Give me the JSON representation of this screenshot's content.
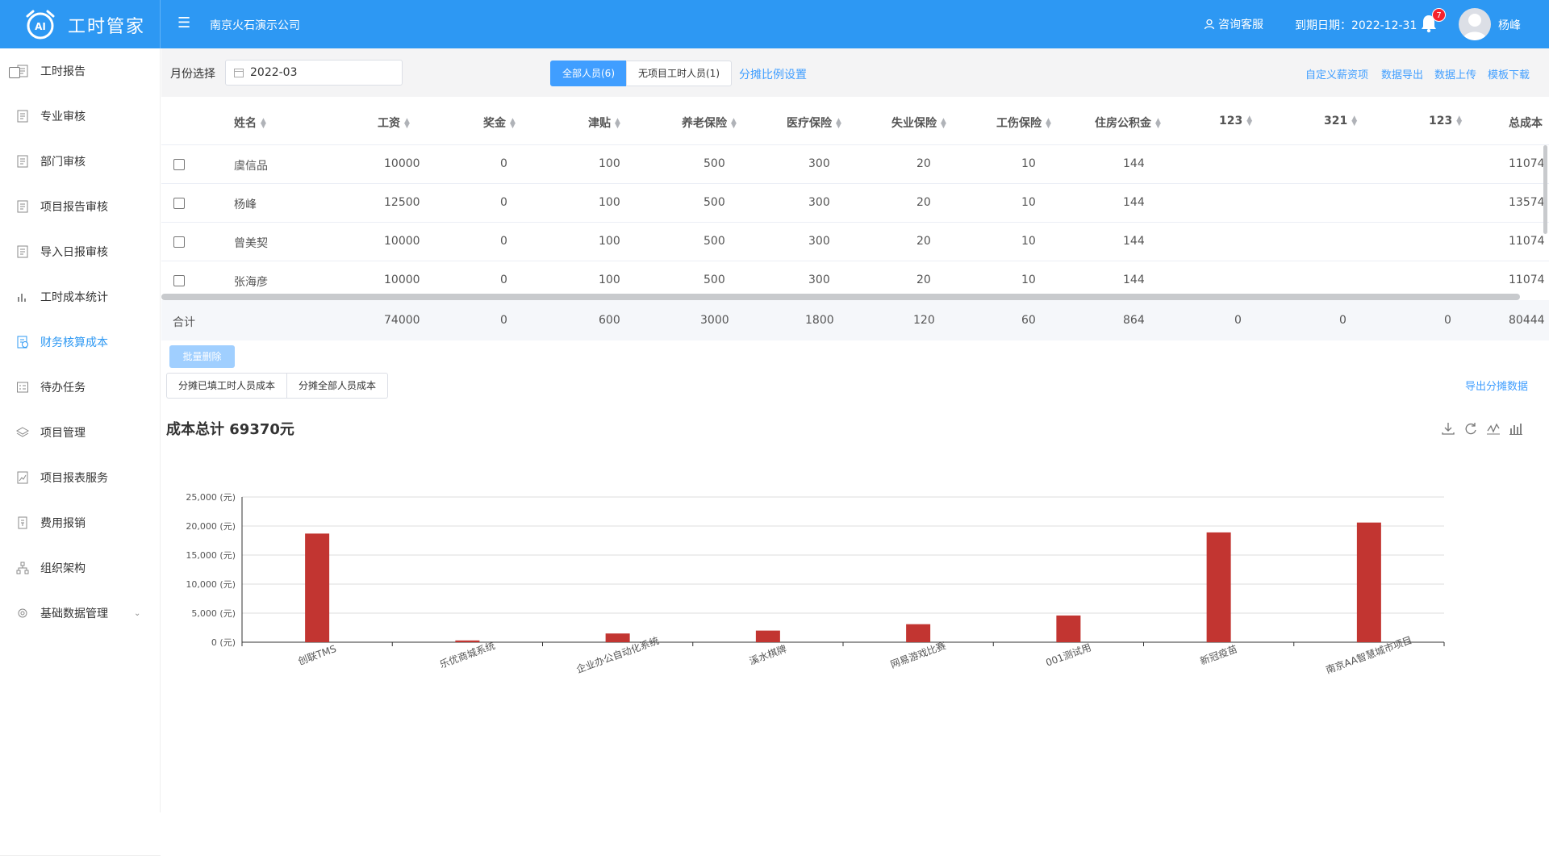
{
  "app": {
    "title": "工时管家",
    "logo_text": "AI",
    "company": "南京火石演示公司",
    "consult": "咨询客服",
    "expire": "到期日期：2022-12-31",
    "notifications": "7",
    "user": "杨峰",
    "accent": "#2d98f3"
  },
  "sidebar": {
    "items": [
      {
        "label": "工时报告",
        "icon": "report-icon"
      },
      {
        "label": "专业审核",
        "icon": "audit-icon"
      },
      {
        "label": "部门审核",
        "icon": "department-audit-icon"
      },
      {
        "label": "项目报告审核",
        "icon": "project-report-icon"
      },
      {
        "label": "导入日报审核",
        "icon": "import-icon"
      },
      {
        "label": "工时成本统计",
        "icon": "bar-chart-icon"
      },
      {
        "label": "财务核算成本",
        "icon": "finance-icon",
        "active": true
      },
      {
        "label": "待办任务",
        "icon": "task-icon"
      },
      {
        "label": "项目管理",
        "icon": "layers-icon"
      },
      {
        "label": "项目报表服务",
        "icon": "report-service-icon"
      },
      {
        "label": "费用报销",
        "icon": "expense-icon"
      },
      {
        "label": "组织架构",
        "icon": "org-icon"
      },
      {
        "label": "基础数据管理",
        "icon": "settings-icon",
        "expandable": true
      }
    ]
  },
  "filter": {
    "month_label": "月份选择",
    "month_value": "2022-03",
    "seg_all": "全部人员(6)",
    "seg_none": "无项目工时人员(1)",
    "ratio_link": "分摊比例设置",
    "links": [
      "自定义薪资项",
      "数据导出",
      "数据上传",
      "模板下载"
    ]
  },
  "table": {
    "headers": [
      "姓名",
      "工资",
      "奖金",
      "津贴",
      "养老保险",
      "医疗保险",
      "失业保险",
      "工伤保险",
      "住房公积金",
      "123",
      "321",
      "123",
      "总成本"
    ],
    "rows": [
      [
        "虞信品",
        "10000",
        "0",
        "100",
        "500",
        "300",
        "20",
        "10",
        "144",
        "",
        "",
        "",
        "11074"
      ],
      [
        "杨峰",
        "12500",
        "0",
        "100",
        "500",
        "300",
        "20",
        "10",
        "144",
        "",
        "",
        "",
        "13574"
      ],
      [
        "曾美契",
        "10000",
        "0",
        "100",
        "500",
        "300",
        "20",
        "10",
        "144",
        "",
        "",
        "",
        "11074"
      ],
      [
        "张海彦",
        "10000",
        "0",
        "100",
        "500",
        "300",
        "20",
        "10",
        "144",
        "",
        "",
        "",
        "11074"
      ]
    ],
    "summary": [
      "合计",
      "74000",
      "0",
      "600",
      "3000",
      "1800",
      "120",
      "60",
      "864",
      "0",
      "0",
      "0",
      "80444"
    ]
  },
  "actions": {
    "batch_delete": "批量删除",
    "alloc_filled": "分摊已填工时人员成本",
    "alloc_all": "分摊全部人员成本",
    "export_alloc": "导出分摊数据"
  },
  "chart_data": {
    "type": "bar",
    "title": "成本总计 69370元",
    "categories": [
      "创联TMS",
      "乐优商城系统",
      "企业办公自动化系统",
      "溪水棋牌",
      "网易游戏比赛",
      "001测试用",
      "新冠疫苗",
      "南京AA智慧城市项目"
    ],
    "values": [
      18700,
      300,
      1500,
      2000,
      3100,
      4600,
      18900,
      20600
    ],
    "ylim": [
      0,
      25000
    ],
    "yticks": [
      "0 (元)",
      "5,000 (元)",
      "10,000 (元)",
      "15,000 (元)",
      "20,000 (元)",
      "25,000 (元)"
    ],
    "bar_color": "#c23531",
    "grid": true
  },
  "chart_tools": [
    "download-icon",
    "refresh-icon",
    "line-chart-icon",
    "bar-chart-icon"
  ]
}
